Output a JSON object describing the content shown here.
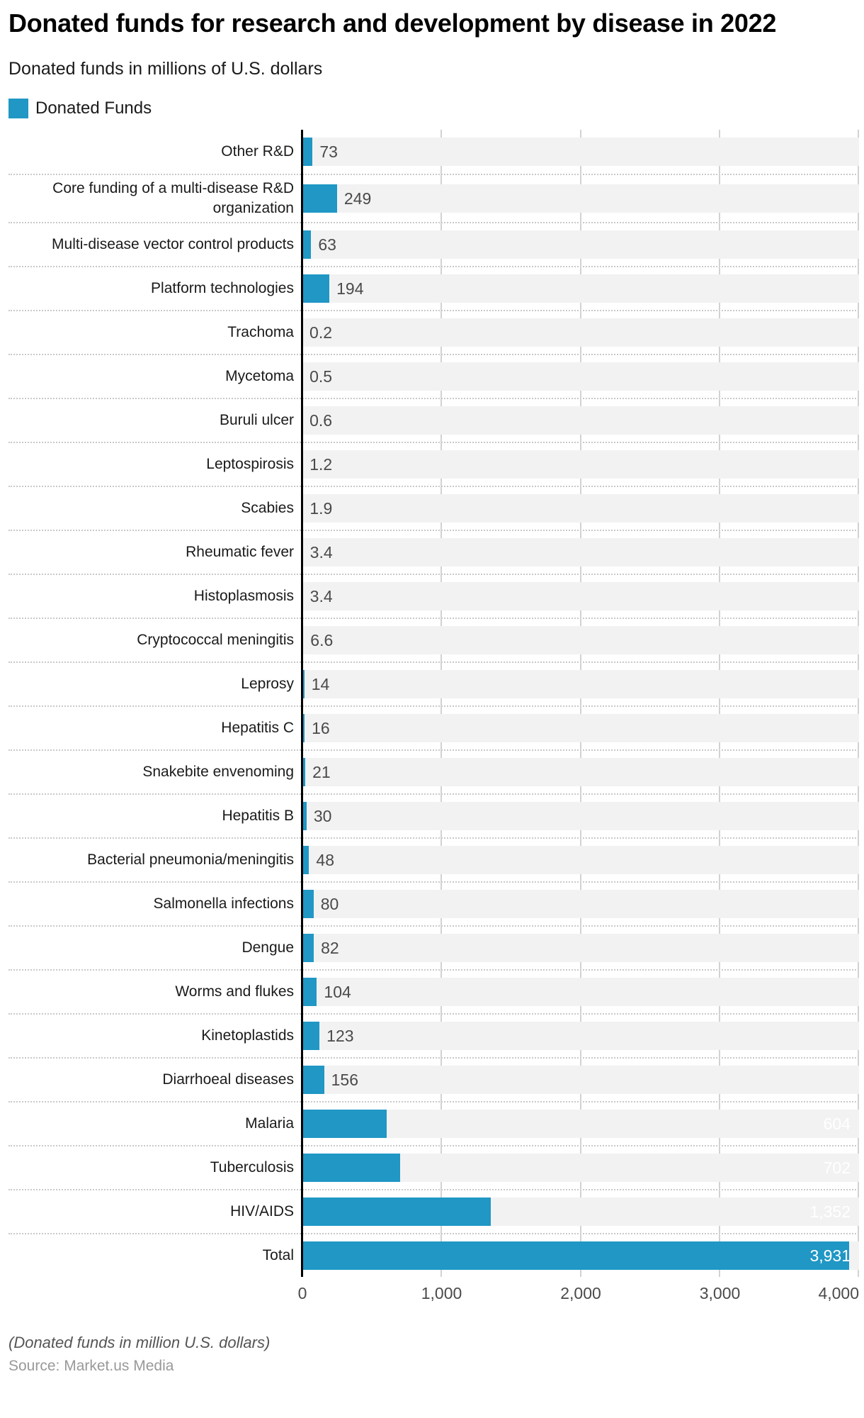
{
  "header": {
    "title": "Donated funds for research and development by disease in 2022",
    "subtitle": "Donated funds in millions of U.S. dollars"
  },
  "legend": {
    "label": "Donated Funds"
  },
  "colors": {
    "accent": "#2097c5",
    "track": "#f2f2f2",
    "axis_line": "#000000",
    "gridline": "#d2d2d2",
    "value_outside_text": "#4a4a4a",
    "value_inside_text": "#ffffff"
  },
  "chart_data": {
    "type": "bar",
    "orientation": "horizontal",
    "title": "Donated funds for research and development by disease in 2022",
    "subtitle": "Donated funds in millions of U.S. dollars",
    "xlabel": "",
    "ylabel": "",
    "xlim": [
      0,
      4000
    ],
    "grid": true,
    "legend_position": "top-left",
    "legend_entries": [
      "Donated Funds"
    ],
    "x_ticks": [
      {
        "value": 0,
        "label": "0"
      },
      {
        "value": 1000,
        "label": "1,000"
      },
      {
        "value": 2000,
        "label": "2,000"
      },
      {
        "value": 3000,
        "label": "3,000"
      },
      {
        "value": 4000,
        "label": "4,000"
      }
    ],
    "rows": [
      {
        "category": "Other R&D",
        "value": 73,
        "display": "73",
        "label_inside": false
      },
      {
        "category": "Core funding of a multi-disease R&D organization",
        "value": 249,
        "display": "249",
        "label_inside": false
      },
      {
        "category": "Multi-disease vector control products",
        "value": 63,
        "display": "63",
        "label_inside": false
      },
      {
        "category": "Platform technologies",
        "value": 194,
        "display": "194",
        "label_inside": false
      },
      {
        "category": "Trachoma",
        "value": 0.2,
        "display": "0.2",
        "label_inside": false
      },
      {
        "category": "Mycetoma",
        "value": 0.5,
        "display": "0.5",
        "label_inside": false
      },
      {
        "category": "Buruli ulcer",
        "value": 0.6,
        "display": "0.6",
        "label_inside": false
      },
      {
        "category": "Leptospirosis",
        "value": 1.2,
        "display": "1.2",
        "label_inside": false
      },
      {
        "category": "Scabies",
        "value": 1.9,
        "display": "1.9",
        "label_inside": false
      },
      {
        "category": "Rheumatic fever",
        "value": 3.4,
        "display": "3.4",
        "label_inside": false
      },
      {
        "category": "Histoplasmosis",
        "value": 3.4,
        "display": "3.4",
        "label_inside": false
      },
      {
        "category": "Cryptococcal meningitis",
        "value": 6.6,
        "display": "6.6",
        "label_inside": false
      },
      {
        "category": "Leprosy",
        "value": 14,
        "display": "14",
        "label_inside": false
      },
      {
        "category": "Hepatitis C",
        "value": 16,
        "display": "16",
        "label_inside": false
      },
      {
        "category": "Snakebite envenoming",
        "value": 21,
        "display": "21",
        "label_inside": false
      },
      {
        "category": "Hepatitis B",
        "value": 30,
        "display": "30",
        "label_inside": false
      },
      {
        "category": "Bacterial pneumonia/meningitis",
        "value": 48,
        "display": "48",
        "label_inside": false
      },
      {
        "category": "Salmonella infections",
        "value": 80,
        "display": "80",
        "label_inside": false
      },
      {
        "category": "Dengue",
        "value": 82,
        "display": "82",
        "label_inside": false
      },
      {
        "category": "Worms and flukes",
        "value": 104,
        "display": "104",
        "label_inside": false
      },
      {
        "category": "Kinetoplastids",
        "value": 123,
        "display": "123",
        "label_inside": false
      },
      {
        "category": "Diarrhoeal diseases",
        "value": 156,
        "display": "156",
        "label_inside": false
      },
      {
        "category": "Malaria",
        "value": 604,
        "display": "604",
        "label_inside": true
      },
      {
        "category": "Tuberculosis",
        "value": 702,
        "display": "702",
        "label_inside": true
      },
      {
        "category": "HIV/AIDS",
        "value": 1352,
        "display": "1,352",
        "label_inside": true
      },
      {
        "category": "Total",
        "value": 3931,
        "display": "3,931",
        "label_inside": true
      }
    ]
  },
  "footer": {
    "note": "(Donated funds in million U.S. dollars)",
    "source": "Source: Market.us Media"
  }
}
